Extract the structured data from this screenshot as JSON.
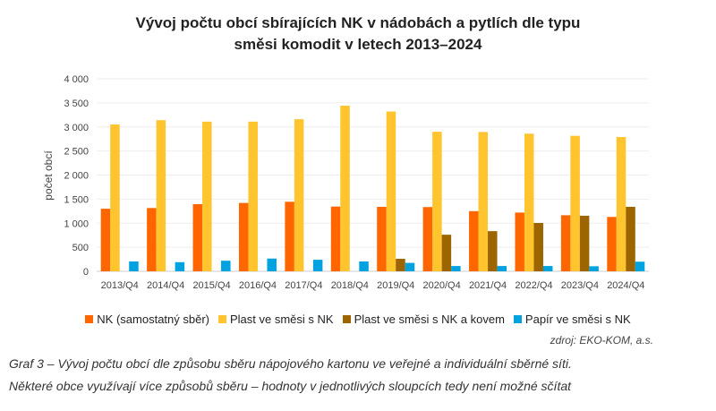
{
  "chart_data": {
    "type": "bar",
    "title_line1": "Vývoj počtu obcí sbírajících NK v nádobách a pytlích dle typu",
    "title_line2": "směsi komodit v letech 2013–2024",
    "ylabel": "počet obcí",
    "xlabel": "",
    "ylim": [
      0,
      4000
    ],
    "yticks": [
      "0",
      "500",
      "1 000",
      "1 500",
      "2 000",
      "2 500",
      "3 000",
      "3 500",
      "4 000"
    ],
    "grid": true,
    "legend_position": "bottom",
    "categories": [
      "2013/Q4",
      "2014/Q4",
      "2015/Q4",
      "2016/Q4",
      "2017/Q4",
      "2018/Q4",
      "2019/Q4",
      "2020/Q4",
      "2021/Q4",
      "2022/Q4",
      "2023/Q4",
      "2024/Q4"
    ],
    "series": [
      {
        "name": "NK (samostatný sběr)",
        "color": "#ff6600",
        "values": [
          1300,
          1315,
          1395,
          1420,
          1445,
          1345,
          1340,
          1335,
          1250,
          1220,
          1165,
          1130
        ]
      },
      {
        "name": "Plast ve směsi s NK",
        "color": "#ffc42e",
        "values": [
          3050,
          3140,
          3110,
          3110,
          3160,
          3440,
          3320,
          2900,
          2895,
          2860,
          2815,
          2790
        ]
      },
      {
        "name": "Plast ve směsi s NK a kovem",
        "color": "#9c6500",
        "values": [
          0,
          0,
          0,
          0,
          0,
          0,
          260,
          760,
          835,
          1005,
          1155,
          1340
        ]
      },
      {
        "name": "Papír ve směsi s NK",
        "color": "#00a2e0",
        "values": [
          205,
          190,
          220,
          265,
          240,
          205,
          175,
          110,
          110,
          110,
          105,
          200
        ]
      }
    ]
  },
  "source": "zdroj: EKO-KOM, a.s.",
  "caption_line1": "Graf 3 – Vývoj počtu obcí dle způsobu sběru nápojového kartonu ve veřejné a individuální sběrné síti.",
  "caption_line2": "Některé obce využívají více způsobů sběru – hodnoty v jednotlivých sloupcích tedy není možné sčítat"
}
